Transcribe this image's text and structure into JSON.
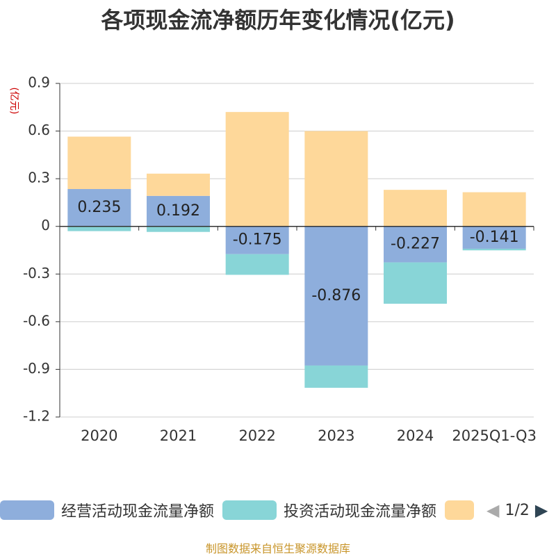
{
  "chart_data": {
    "type": "bar",
    "stacked": true,
    "title": "各项现金流净额历年变化情况(亿元)",
    "ylabel": "(亿元)",
    "ylim": [
      -1.2,
      0.9
    ],
    "yticks": [
      "0.9",
      "0.6",
      "0.3",
      "0",
      "-0.3",
      "-0.6",
      "-0.9",
      "-1.2"
    ],
    "ytick_values": [
      0.9,
      0.6,
      0.3,
      0,
      -0.3,
      -0.6,
      -0.9,
      -1.2
    ],
    "categories": [
      "2020",
      "2021",
      "2022",
      "2023",
      "2024",
      "2025Q1-Q3"
    ],
    "series": [
      {
        "name": "经营活动现金流量净额",
        "color": "#8eaedc",
        "values": [
          0.235,
          0.192,
          -0.175,
          -0.876,
          -0.227,
          -0.141
        ],
        "labels": [
          "0.235",
          "0.192",
          "-0.175",
          "-0.876",
          "-0.227",
          "-0.141"
        ]
      },
      {
        "name": "投资活动现金流量净额",
        "color": "#88d5d7",
        "values": [
          -0.03,
          -0.035,
          -0.13,
          -0.14,
          -0.26,
          -0.01
        ]
      },
      {
        "name": "",
        "color": "#fed89a",
        "values": [
          0.33,
          0.14,
          0.72,
          0.6,
          0.23,
          0.215
        ]
      }
    ]
  },
  "legend": {
    "items": [
      "经营活动现金流量净额",
      "投资活动现金流量净额",
      ""
    ],
    "page": "1/2",
    "prev_icon": "◀",
    "next_icon": "▶"
  },
  "footer": {
    "source": "制图数据来自恒生聚源数据库"
  }
}
